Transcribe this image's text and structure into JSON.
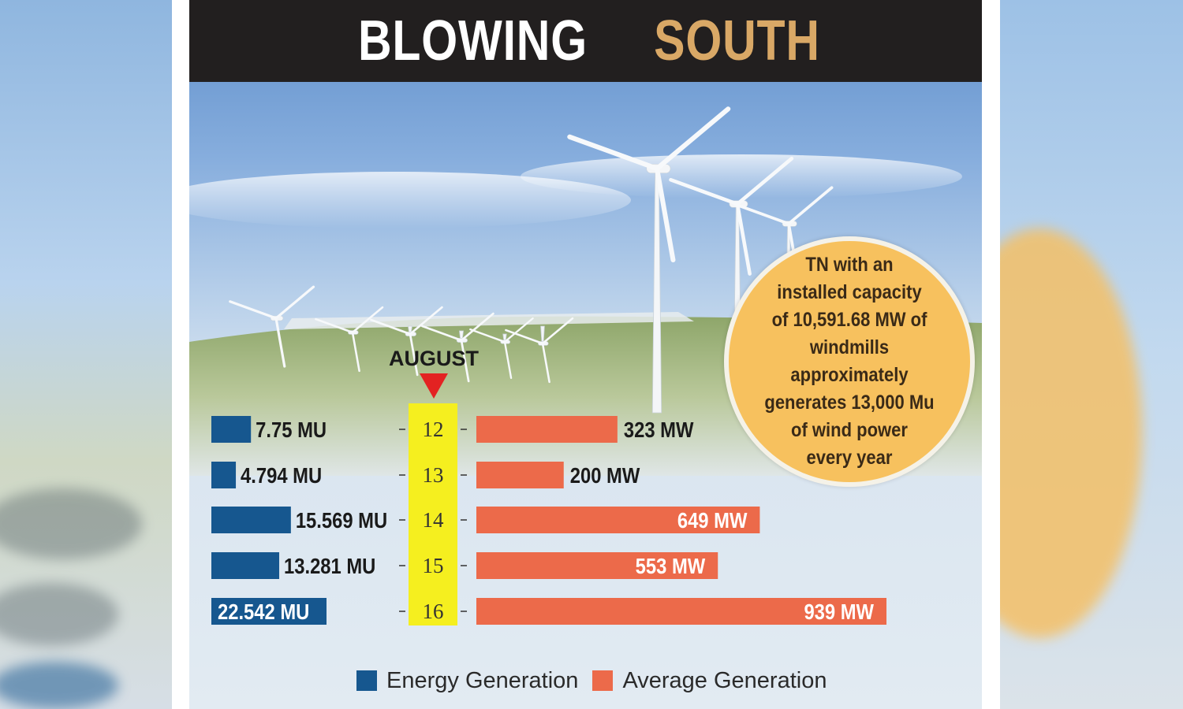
{
  "title": {
    "word1": "BLOWING",
    "word2": "SOUTH"
  },
  "colors": {
    "energy": "#16578f",
    "average": "#ec6a4a",
    "highlight": "#f5ef1f",
    "marker": "#e32222",
    "circle": "#f7c15e",
    "title_bar": "#221f1f",
    "title_accent": "#d9a866"
  },
  "info_circle": {
    "lines": [
      "TN with an",
      "installed capacity",
      "of 10,591.68 MW of",
      "windmills approximately",
      "generates 13,000 Mu",
      "of wind power",
      "every year"
    ]
  },
  "chart_data": {
    "type": "bar",
    "title": "BLOWING SOUTH",
    "month_label": "AUGUST",
    "categories": [
      "12",
      "13",
      "14",
      "15",
      "16"
    ],
    "series": [
      {
        "name": "Energy Generation",
        "unit": "MU",
        "values": [
          7.75,
          4.794,
          15.569,
          13.281,
          22.542
        ],
        "labels": [
          "7.75 MU",
          "4.794 MU",
          "15.569 MU",
          "13.281 MU",
          "22.542 MU"
        ]
      },
      {
        "name": "Average Generation",
        "unit": "MW",
        "values": [
          323,
          200,
          649,
          553,
          939
        ],
        "labels": [
          "323 MW",
          "200 MW",
          "649 MW",
          "553 MW",
          "939 MW"
        ]
      }
    ],
    "legend": [
      "Energy Generation",
      "Average Generation"
    ],
    "legend_position": "bottom"
  }
}
